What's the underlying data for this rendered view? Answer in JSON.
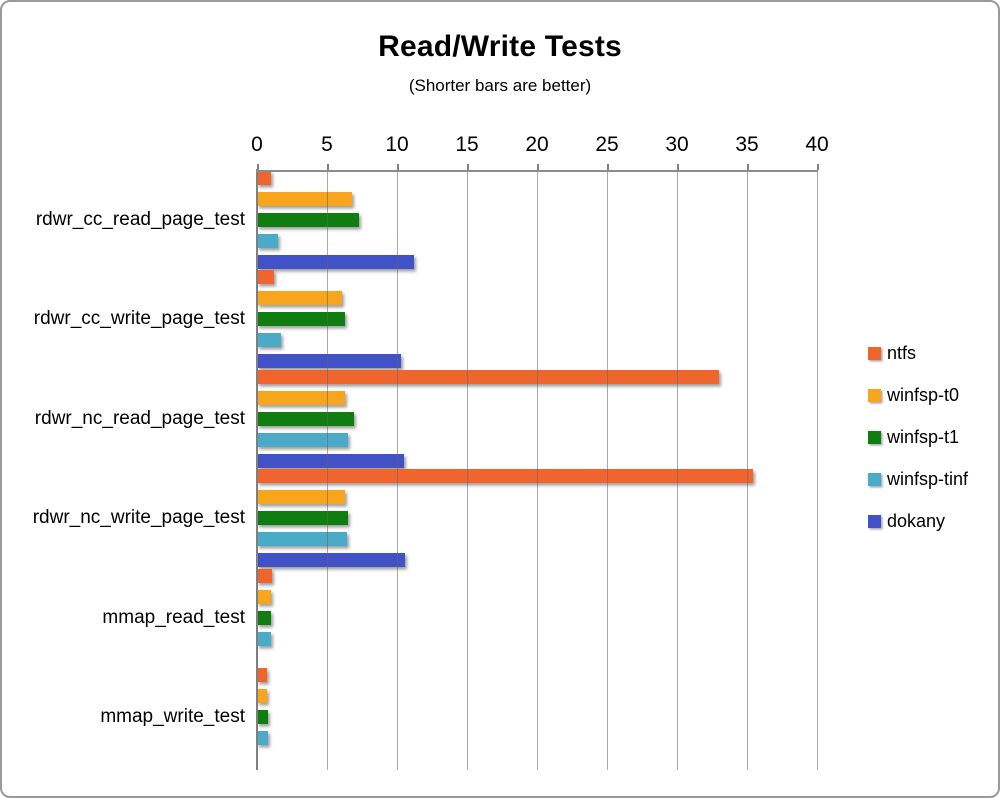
{
  "window": {
    "background": "#ffffff",
    "border_color": "#9a9a9a"
  },
  "chart_data": {
    "type": "bar",
    "orientation": "horizontal",
    "title": "Read/Write Tests",
    "subtitle": "(Shorter bars are better)",
    "categories": [
      "rdwr_cc_read_page_test",
      "rdwr_cc_write_page_test",
      "rdwr_nc_read_page_test",
      "rdwr_nc_write_page_test",
      "mmap_read_test",
      "mmap_write_test"
    ],
    "series": [
      {
        "name": "ntfs",
        "color": "#F0642E",
        "values": [
          1.0,
          1.2,
          33.0,
          35.4,
          1.1,
          0.7
        ]
      },
      {
        "name": "winfsp-t0",
        "color": "#F7A51D",
        "values": [
          6.8,
          6.1,
          6.3,
          6.3,
          1.0,
          0.7
        ]
      },
      {
        "name": "winfsp-t1",
        "color": "#107D10",
        "values": [
          7.3,
          6.3,
          6.9,
          6.5,
          1.0,
          0.75
        ]
      },
      {
        "name": "winfsp-tinf",
        "color": "#4AABC9",
        "values": [
          1.5,
          1.7,
          6.5,
          6.4,
          1.0,
          0.75
        ]
      },
      {
        "name": "dokany",
        "color": "#4152C6",
        "values": [
          11.2,
          10.3,
          10.5,
          10.6,
          0,
          0
        ]
      }
    ],
    "xlim": [
      0,
      40
    ],
    "xticks": [
      0,
      5,
      10,
      15,
      20,
      25,
      30,
      35,
      40
    ],
    "grid": true,
    "legend_position": "right",
    "axis_color": "#7f7f7f",
    "grid_color": "rgba(100,100,100,0.55)"
  }
}
